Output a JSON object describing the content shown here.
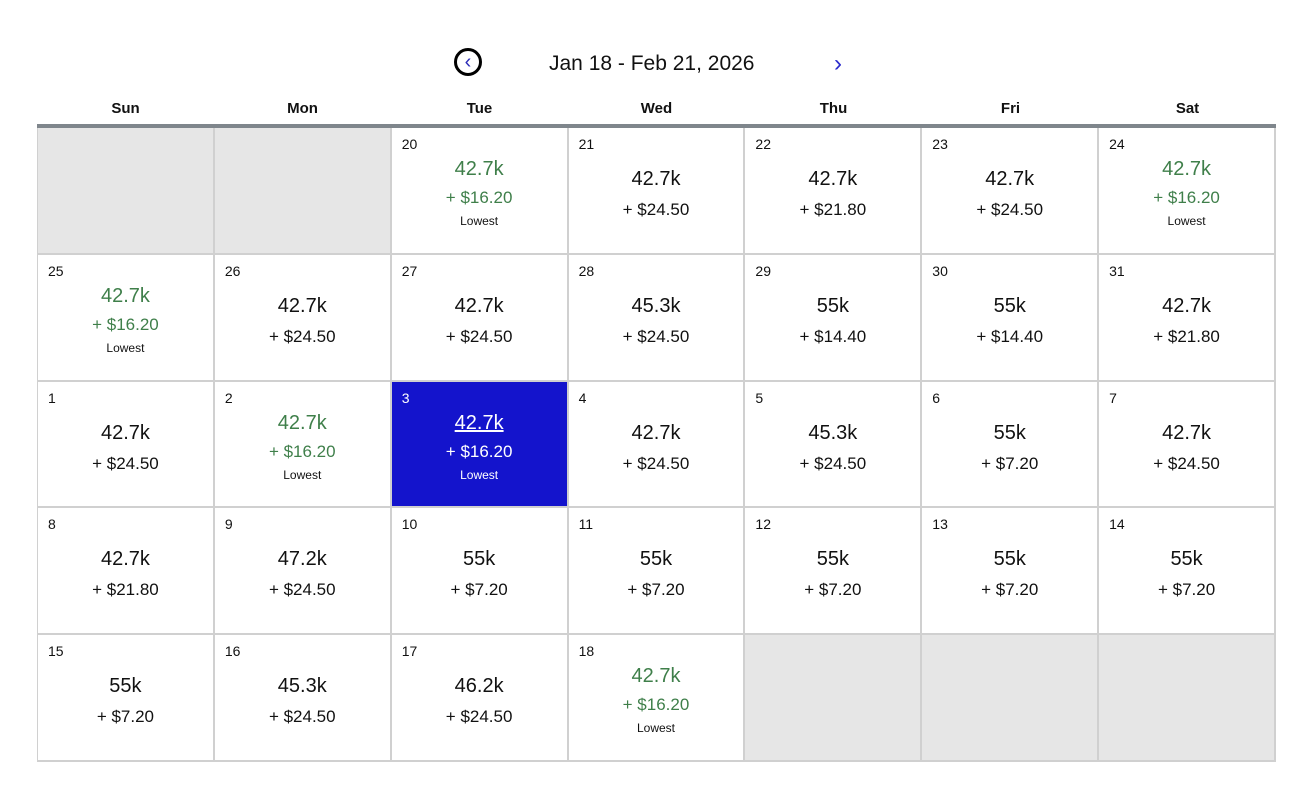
{
  "header": {
    "title": "Jan 18 - Feb 21, 2026",
    "prev_icon": "chevron-left-circle-icon",
    "next_icon": "chevron-right-icon"
  },
  "weekdays": [
    "Sun",
    "Mon",
    "Tue",
    "Wed",
    "Thu",
    "Fri",
    "Sat"
  ],
  "lowest_label": "Lowest",
  "colors": {
    "selected": "#1414cc",
    "lowest": "#3f7f4a"
  },
  "cells": [
    null,
    null,
    {
      "day": "20",
      "points": "42.7k",
      "fee": "+ $16.20",
      "lowest": true
    },
    {
      "day": "21",
      "points": "42.7k",
      "fee": "+ $24.50"
    },
    {
      "day": "22",
      "points": "42.7k",
      "fee": "+ $21.80"
    },
    {
      "day": "23",
      "points": "42.7k",
      "fee": "+ $24.50"
    },
    {
      "day": "24",
      "points": "42.7k",
      "fee": "+ $16.20",
      "lowest": true
    },
    {
      "day": "25",
      "points": "42.7k",
      "fee": "+ $16.20",
      "lowest": true
    },
    {
      "day": "26",
      "points": "42.7k",
      "fee": "+ $24.50"
    },
    {
      "day": "27",
      "points": "42.7k",
      "fee": "+ $24.50"
    },
    {
      "day": "28",
      "points": "45.3k",
      "fee": "+ $24.50"
    },
    {
      "day": "29",
      "points": "55k",
      "fee": "+ $14.40"
    },
    {
      "day": "30",
      "points": "55k",
      "fee": "+ $14.40"
    },
    {
      "day": "31",
      "points": "42.7k",
      "fee": "+ $21.80"
    },
    {
      "day": "1",
      "points": "42.7k",
      "fee": "+ $24.50"
    },
    {
      "day": "2",
      "points": "42.7k",
      "fee": "+ $16.20",
      "lowest": true
    },
    {
      "day": "3",
      "points": "42.7k",
      "fee": "+ $16.20",
      "lowest": true,
      "selected": true
    },
    {
      "day": "4",
      "points": "42.7k",
      "fee": "+ $24.50"
    },
    {
      "day": "5",
      "points": "45.3k",
      "fee": "+ $24.50"
    },
    {
      "day": "6",
      "points": "55k",
      "fee": "+ $7.20"
    },
    {
      "day": "7",
      "points": "42.7k",
      "fee": "+ $24.50"
    },
    {
      "day": "8",
      "points": "42.7k",
      "fee": "+ $21.80"
    },
    {
      "day": "9",
      "points": "47.2k",
      "fee": "+ $24.50"
    },
    {
      "day": "10",
      "points": "55k",
      "fee": "+ $7.20"
    },
    {
      "day": "11",
      "points": "55k",
      "fee": "+ $7.20"
    },
    {
      "day": "12",
      "points": "55k",
      "fee": "+ $7.20"
    },
    {
      "day": "13",
      "points": "55k",
      "fee": "+ $7.20"
    },
    {
      "day": "14",
      "points": "55k",
      "fee": "+ $7.20"
    },
    {
      "day": "15",
      "points": "55k",
      "fee": "+ $7.20"
    },
    {
      "day": "16",
      "points": "45.3k",
      "fee": "+ $24.50"
    },
    {
      "day": "17",
      "points": "46.2k",
      "fee": "+ $24.50"
    },
    {
      "day": "18",
      "points": "42.7k",
      "fee": "+ $16.20",
      "lowest": true
    },
    null,
    null,
    null
  ]
}
